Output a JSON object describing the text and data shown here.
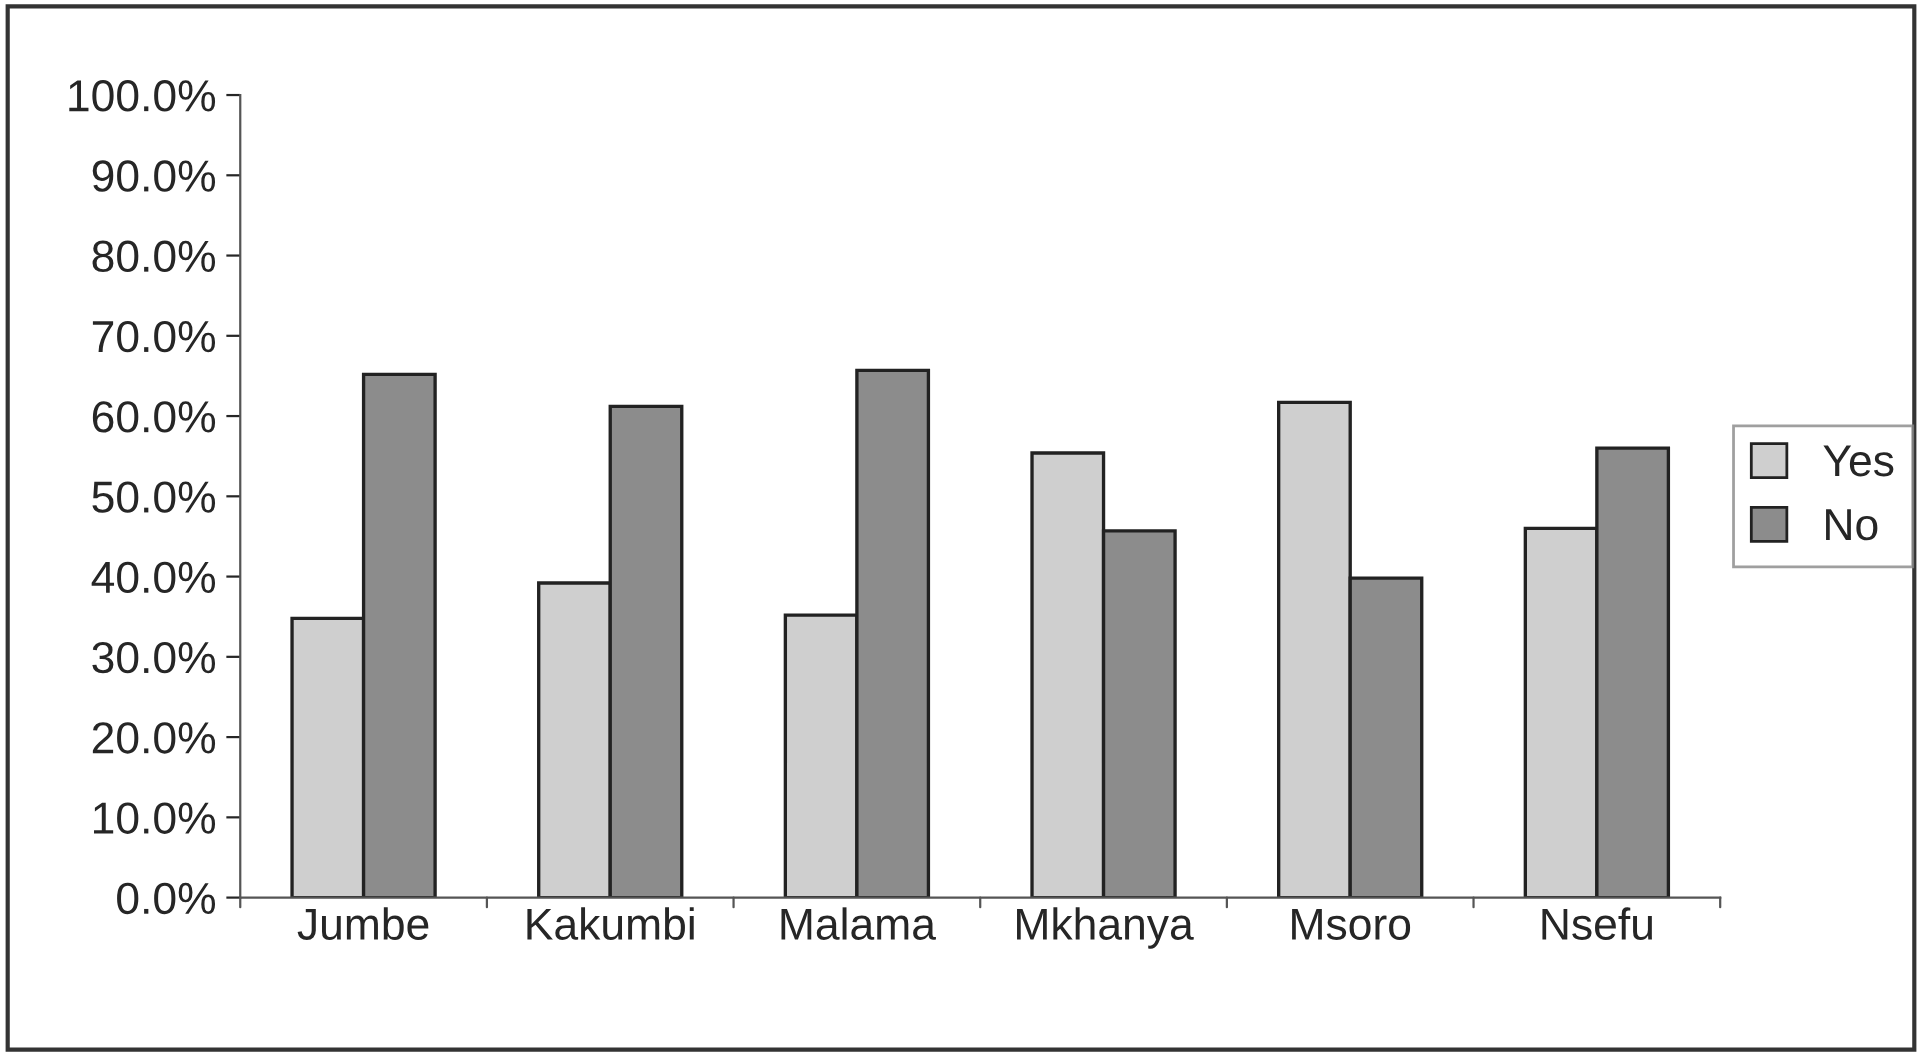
{
  "chart_data": {
    "type": "bar",
    "categories": [
      "Jumbe",
      "Kakumbi",
      "Malama",
      "Mkhanya",
      "Msoro",
      "Nsefu"
    ],
    "series": [
      {
        "name": "Yes",
        "color": "#cfcfcf",
        "values": [
          34.8,
          39.2,
          35.2,
          55.4,
          61.7,
          46.0
        ]
      },
      {
        "name": "No",
        "color": "#8c8c8c",
        "values": [
          65.2,
          61.2,
          65.7,
          45.7,
          39.8,
          56.0
        ]
      }
    ],
    "ylim": [
      0,
      100
    ],
    "yticks": [
      {
        "value": 0,
        "label": "0.0%"
      },
      {
        "value": 10,
        "label": "10.0%"
      },
      {
        "value": 20,
        "label": "20.0%"
      },
      {
        "value": 30,
        "label": "30.0%"
      },
      {
        "value": 40,
        "label": "40.0%"
      },
      {
        "value": 50,
        "label": "50.0%"
      },
      {
        "value": 60,
        "label": "60.0%"
      },
      {
        "value": 70,
        "label": "70.0%"
      },
      {
        "value": 80,
        "label": "80.0%"
      },
      {
        "value": 90,
        "label": "90.0%"
      },
      {
        "value": 100,
        "label": "100.0%"
      }
    ],
    "grid": false,
    "legend": "right"
  }
}
